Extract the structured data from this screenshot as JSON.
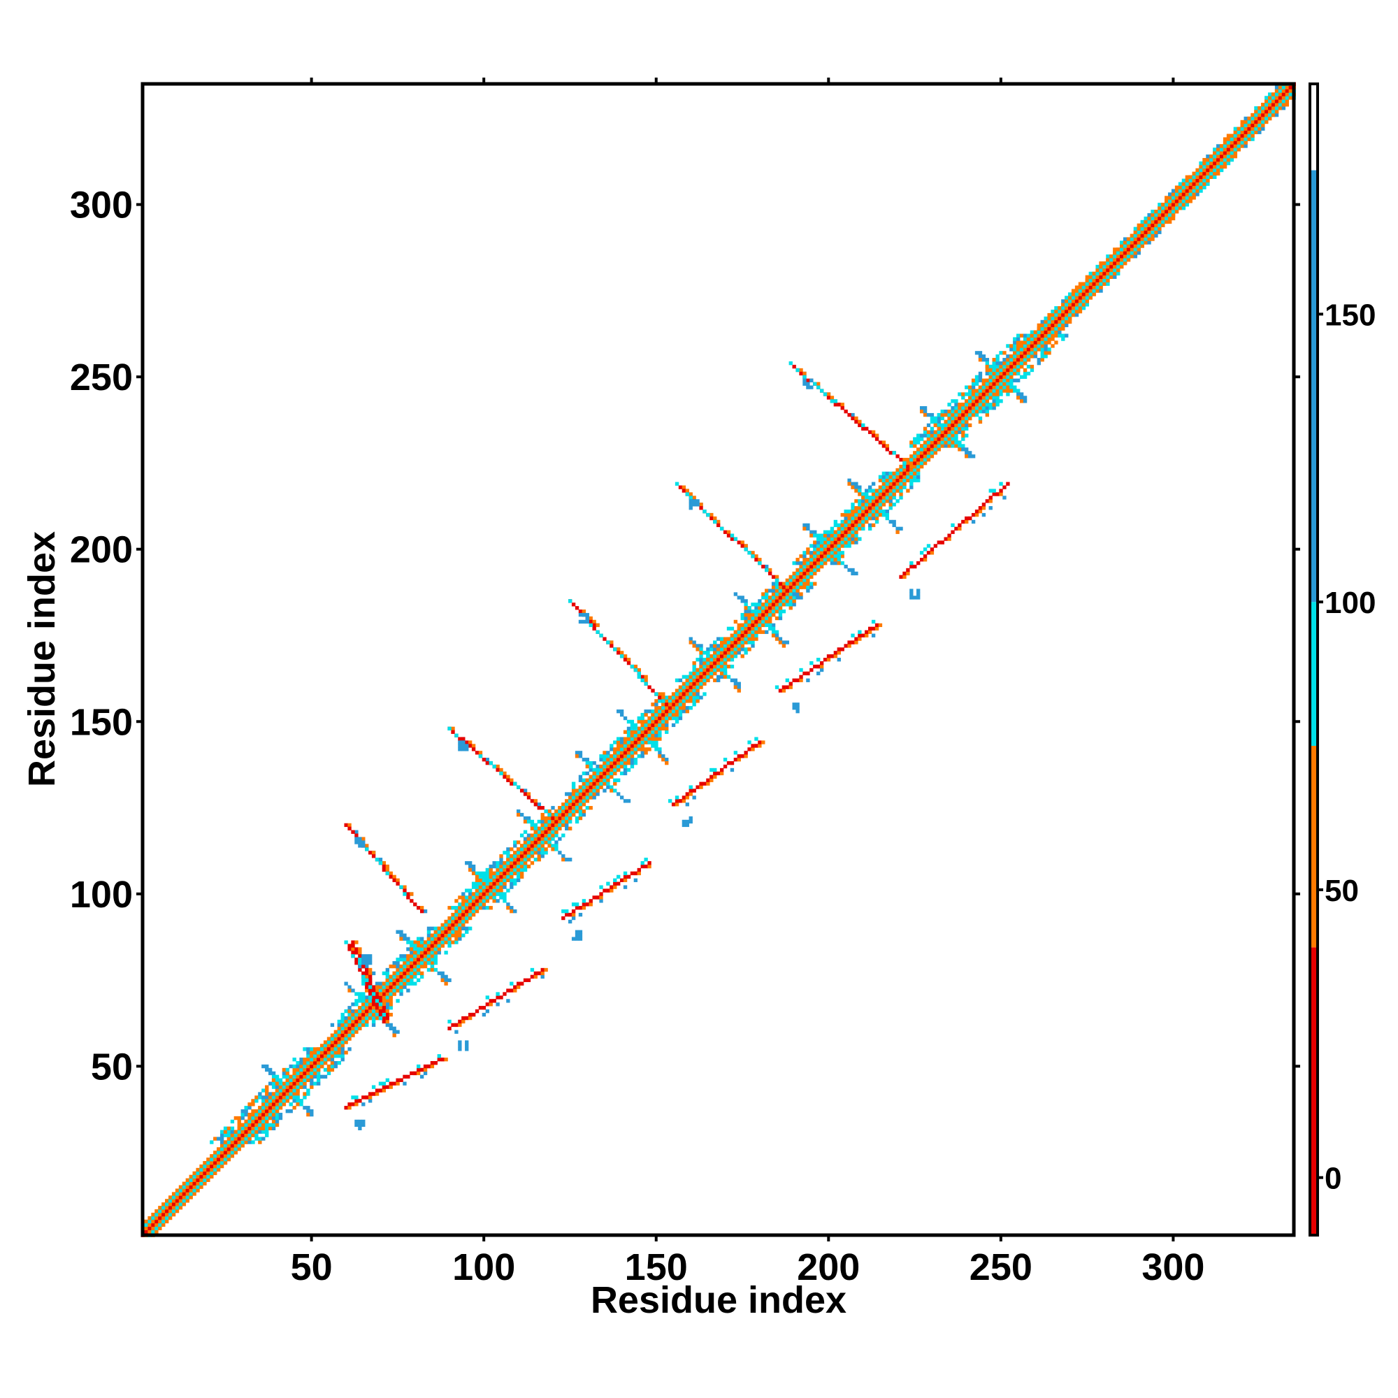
{
  "chart_data": {
    "type": "heatmap",
    "title": "",
    "xlabel": "Residue index",
    "ylabel": "Residue index",
    "xlim": [
      1,
      335
    ],
    "ylim": [
      1,
      335
    ],
    "xticks": [
      50,
      100,
      150,
      200,
      250,
      300
    ],
    "yticks": [
      50,
      100,
      150,
      200,
      250,
      300
    ],
    "grid": false,
    "legend": "colorbar-right",
    "colorbar": {
      "ticks": [
        0,
        50,
        100,
        150
      ],
      "range": [
        -10,
        190
      ],
      "bins": [
        {
          "from": -10,
          "to": 40,
          "color": "#e60000"
        },
        {
          "from": 40,
          "to": 75,
          "color": "#ff7a00"
        },
        {
          "from": 75,
          "to": 100,
          "color": "#00e0e8"
        },
        {
          "from": 100,
          "to": 175,
          "color": "#2a9ad6"
        },
        {
          "from": 175,
          "to": 190,
          "color": "#ffffff"
        }
      ]
    },
    "features": [
      {
        "kind": "diagonal",
        "from": 1,
        "to": 335,
        "width": 3
      },
      {
        "kind": "diagonal",
        "from": 28,
        "to": 55,
        "width": 7
      },
      {
        "kind": "diagonal",
        "from": 62,
        "to": 90,
        "width": 6
      },
      {
        "kind": "diagonal",
        "from": 96,
        "to": 125,
        "width": 6
      },
      {
        "kind": "diagonal",
        "from": 128,
        "to": 158,
        "width": 6
      },
      {
        "kind": "diagonal",
        "from": 162,
        "to": 190,
        "width": 6
      },
      {
        "kind": "diagonal",
        "from": 196,
        "to": 222,
        "width": 6
      },
      {
        "kind": "diagonal",
        "from": 230,
        "to": 262,
        "width": 7
      },
      {
        "kind": "diagonal",
        "from": 262,
        "to": 335,
        "width": 4
      },
      {
        "kind": "cross",
        "x": 43,
        "y": 43
      },
      {
        "kind": "cross",
        "x": 67,
        "y": 67
      },
      {
        "kind": "cross",
        "x": 82,
        "y": 82
      },
      {
        "kind": "cross",
        "x": 102,
        "y": 102
      },
      {
        "kind": "cross",
        "x": 117,
        "y": 117
      },
      {
        "kind": "cross",
        "x": 134,
        "y": 134
      },
      {
        "kind": "cross",
        "x": 146,
        "y": 146
      },
      {
        "kind": "cross",
        "x": 167,
        "y": 167
      },
      {
        "kind": "cross",
        "x": 180,
        "y": 180
      },
      {
        "kind": "cross",
        "x": 200,
        "y": 200
      },
      {
        "kind": "cross",
        "x": 213,
        "y": 213
      },
      {
        "kind": "cross",
        "x": 234,
        "y": 234
      },
      {
        "kind": "cross",
        "x": 250,
        "y": 250
      },
      {
        "kind": "antidiag",
        "x1": 61,
        "y1": 85,
        "x2": 71,
        "y2": 63
      },
      {
        "kind": "antidiag",
        "x1": 62,
        "y1": 86,
        "x2": 72,
        "y2": 64
      },
      {
        "kind": "antidiag",
        "x1": 60,
        "y1": 120,
        "x2": 82,
        "y2": 95
      },
      {
        "kind": "antidiag",
        "x1": 90,
        "y1": 148,
        "x2": 120,
        "y2": 122
      },
      {
        "kind": "antidiag",
        "x1": 125,
        "y1": 185,
        "x2": 153,
        "y2": 155
      },
      {
        "kind": "antidiag",
        "x1": 157,
        "y1": 218,
        "x2": 188,
        "y2": 188
      },
      {
        "kind": "antidiag",
        "x1": 190,
        "y1": 253,
        "x2": 223,
        "y2": 224
      },
      {
        "kind": "antidiag",
        "x1": 60,
        "y1": 38,
        "x2": 88,
        "y2": 52
      },
      {
        "kind": "antidiag",
        "x1": 90,
        "y1": 61,
        "x2": 117,
        "y2": 78
      },
      {
        "kind": "antidiag",
        "x1": 123,
        "y1": 93,
        "x2": 148,
        "y2": 109
      },
      {
        "kind": "antidiag",
        "x1": 155,
        "y1": 126,
        "x2": 180,
        "y2": 144
      },
      {
        "kind": "antidiag",
        "x1": 186,
        "y1": 159,
        "x2": 214,
        "y2": 178
      },
      {
        "kind": "antidiag",
        "x1": 221,
        "y1": 192,
        "x2": 252,
        "y2": 219
      }
    ]
  }
}
